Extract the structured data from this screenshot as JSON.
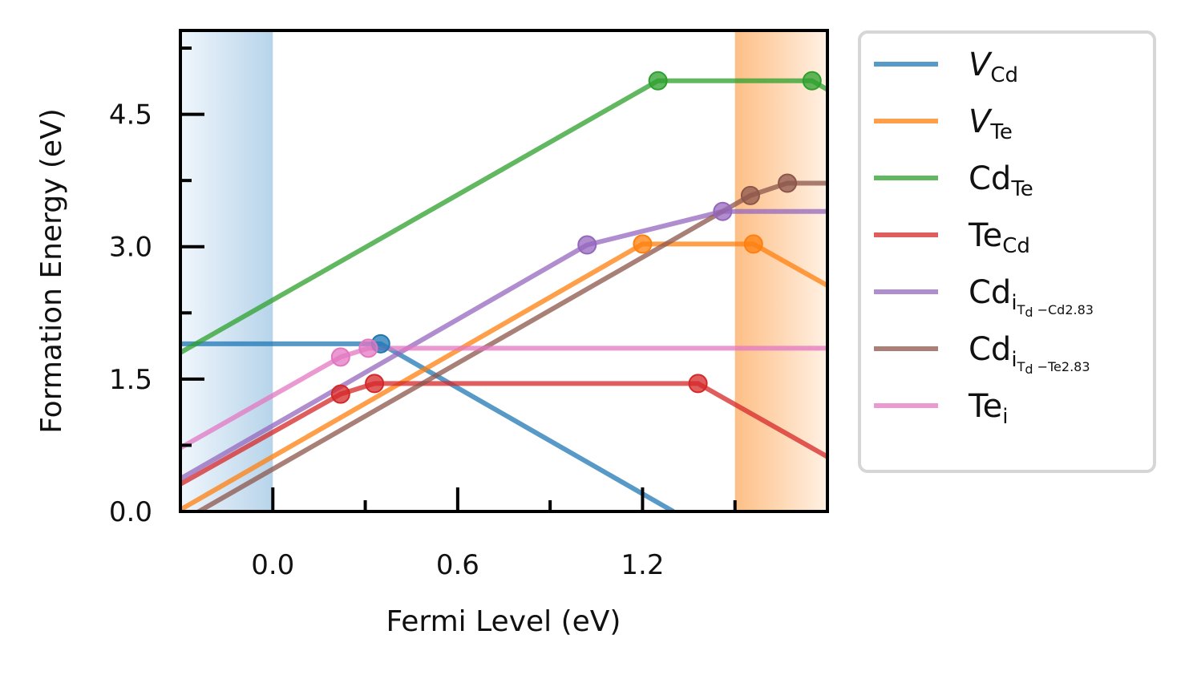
{
  "chart_data": {
    "type": "line",
    "title": "",
    "xlabel": "Fermi Level (eV)",
    "ylabel": "Formation Energy (eV)",
    "xlim": [
      -0.3,
      1.8
    ],
    "ylim": [
      0.0,
      5.45
    ],
    "xticks": [
      "0.0",
      "0.6",
      "1.2"
    ],
    "xtick_values": [
      0.0,
      0.6,
      1.2
    ],
    "yticks": [
      "0.0",
      "1.5",
      "3.0",
      "4.5"
    ],
    "ytick_values": [
      0.0,
      1.5,
      3.0,
      4.5
    ],
    "grid": false,
    "legend_position": "outside-right",
    "shaded_regions": [
      {
        "name": "valence-band",
        "x": [
          -0.3,
          0.0
        ],
        "color": "#b7d4ea",
        "gradient_to": "#f0f6fc",
        "gradient_dir": "left"
      },
      {
        "name": "conduction-band",
        "x": [
          1.5,
          1.8
        ],
        "color": "#fdbf86",
        "gradient_to": "#fff1e4",
        "gradient_dir": "right"
      }
    ],
    "series": [
      {
        "name": "V_Cd",
        "label_main": "V",
        "label_sub": "Cd",
        "italic_main": true,
        "color": "#1f77b4",
        "x": [
          -0.3,
          0.35,
          1.3
        ],
        "y": [
          1.9,
          1.9,
          0.0
        ],
        "markers": [
          [
            0.35,
            1.9
          ]
        ]
      },
      {
        "name": "V_Te",
        "label_main": "V",
        "label_sub": "Te",
        "italic_main": true,
        "color": "#ff7f0e",
        "x": [
          -0.3,
          1.2,
          1.56,
          1.8
        ],
        "y": [
          0.02,
          3.03,
          3.03,
          2.56
        ],
        "markers": [
          [
            1.2,
            3.03
          ],
          [
            1.56,
            3.03
          ]
        ]
      },
      {
        "name": "Cd_Te",
        "label_main": "Cd",
        "label_sub": "Te",
        "italic_main": false,
        "color": "#2ca02c",
        "x": [
          -0.3,
          1.25,
          1.75,
          1.8
        ],
        "y": [
          1.8,
          4.88,
          4.88,
          4.78
        ],
        "markers": [
          [
            1.25,
            4.88
          ],
          [
            1.75,
            4.88
          ]
        ]
      },
      {
        "name": "Te_Cd",
        "label_main": "Te",
        "label_sub": "Cd",
        "italic_main": false,
        "color": "#d62728",
        "x": [
          -0.3,
          0.22,
          0.33,
          1.38,
          1.8
        ],
        "y": [
          0.31,
          1.33,
          1.45,
          1.45,
          0.62
        ],
        "markers": [
          [
            0.22,
            1.33
          ],
          [
            0.33,
            1.45
          ],
          [
            1.38,
            1.45
          ]
        ]
      },
      {
        "name": "Cd_i_Td-Cd2.83",
        "label_main": "Cd",
        "label_sub": "i",
        "label_subsub": "T",
        "label_subsubsub": "d",
        "label_tail": "−Cd2.83",
        "italic_main": false,
        "color": "#9467bd",
        "x": [
          -0.3,
          1.02,
          1.46,
          1.8
        ],
        "y": [
          0.37,
          3.02,
          3.4,
          3.4
        ],
        "markers": [
          [
            1.02,
            3.02
          ],
          [
            1.46,
            3.4
          ]
        ]
      },
      {
        "name": "Cd_i_Td-Te2.83",
        "label_main": "Cd",
        "label_sub": "i",
        "label_subsub": "T",
        "label_subsubsub": "d",
        "label_tail": "−Te2.83",
        "italic_main": false,
        "color": "#8c564b",
        "x": [
          -0.3,
          1.55,
          1.67,
          1.8
        ],
        "y": [
          -0.12,
          3.58,
          3.72,
          3.72
        ],
        "markers": [
          [
            1.55,
            3.58
          ],
          [
            1.67,
            3.72
          ]
        ]
      },
      {
        "name": "Te_i",
        "label_main": "Te",
        "label_sub": "i",
        "italic_main": false,
        "color": "#e377c2",
        "x": [
          -0.3,
          0.22,
          0.31,
          1.8
        ],
        "y": [
          0.72,
          1.75,
          1.85,
          1.85
        ],
        "markers": [
          [
            0.22,
            1.75
          ],
          [
            0.31,
            1.85
          ]
        ]
      }
    ]
  }
}
